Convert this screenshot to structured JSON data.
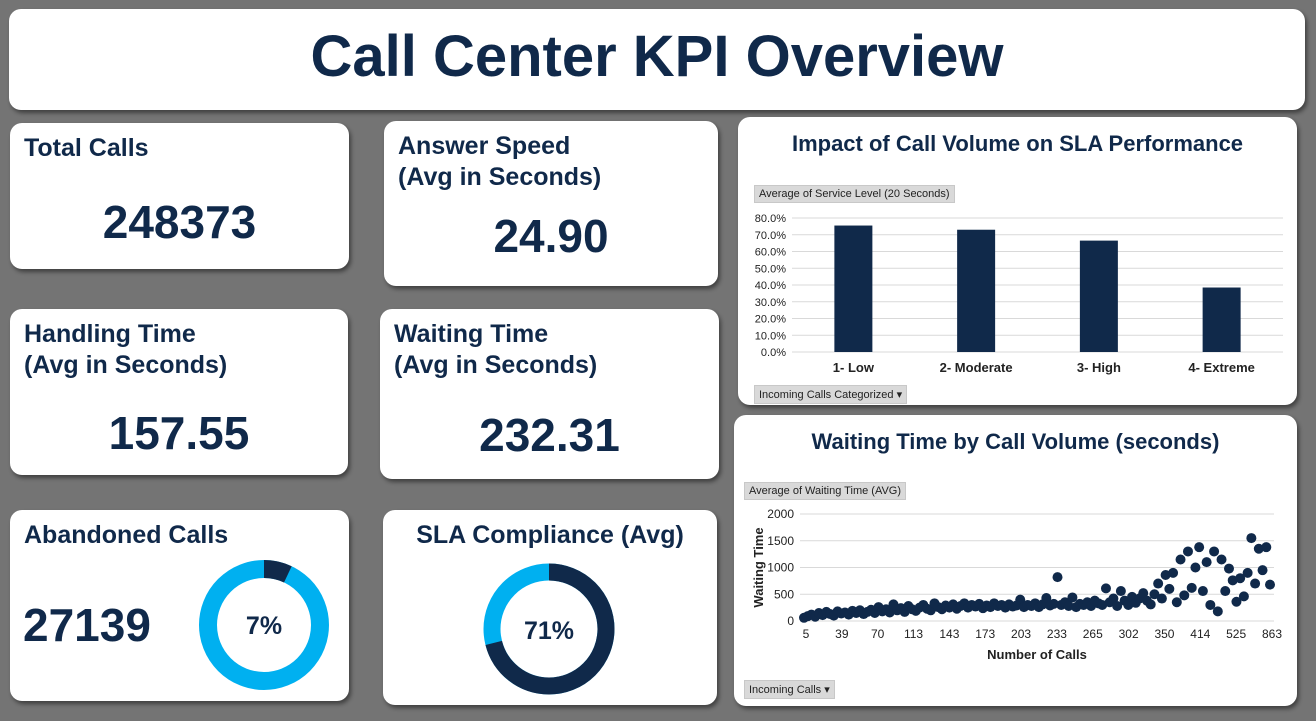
{
  "title": "Call Center KPI Overview",
  "kpis": {
    "total_calls": {
      "label": "Total Calls",
      "value": "248373"
    },
    "answer_speed": {
      "label": "Answer Speed\n(Avg in Seconds)",
      "value": "24.90"
    },
    "handling_time": {
      "label": "Handling Time\n(Avg in Seconds)",
      "value": "157.55"
    },
    "waiting_time": {
      "label": "Waiting Time\n(Avg in Seconds)",
      "value": "232.31"
    },
    "abandoned": {
      "label": "Abandoned Calls",
      "value": "27139",
      "percent_label": "7%",
      "percent": 7
    },
    "sla": {
      "label": "SLA Compliance (Avg)",
      "percent_label": "71%",
      "percent": 71
    }
  },
  "colors": {
    "navy": "#10294a",
    "light_blue": "#00b0f0",
    "background": "#747474"
  },
  "chart_data": [
    {
      "type": "bar",
      "title": "Impact of Call Volume on SLA Performance",
      "value_field_button": "Average of Service Level (20 Seconds)",
      "axis_field_button": "Incoming Calls Categorized",
      "categories": [
        "1- Low",
        "2- Moderate",
        "3- High",
        "4- Extreme"
      ],
      "values": [
        75.5,
        73.0,
        66.5,
        38.5
      ],
      "ylim": [
        0,
        80
      ],
      "yticks": [
        "0.0%",
        "10.0%",
        "20.0%",
        "30.0%",
        "40.0%",
        "50.0%",
        "60.0%",
        "70.0%",
        "80.0%"
      ],
      "grid": true
    },
    {
      "type": "scatter",
      "title": "Waiting Time by Call Volume (seconds)",
      "value_field_button": "Average of Waiting Time  (AVG)",
      "axis_field_button": "Incoming Calls",
      "xlabel": "Number of Calls",
      "ylabel": "Waiting Time",
      "ylim": [
        0,
        2000
      ],
      "yticks": [
        "0",
        "500",
        "1000",
        "1500",
        "2000"
      ],
      "xticks": [
        "5",
        "39",
        "70",
        "113",
        "143",
        "173",
        "203",
        "233",
        "265",
        "302",
        "350",
        "414",
        "525",
        "863"
      ],
      "grid": true,
      "y": [
        60,
        90,
        120,
        80,
        150,
        110,
        170,
        130,
        100,
        180,
        140,
        160,
        120,
        190,
        150,
        200,
        130,
        170,
        210,
        150,
        260,
        180,
        220,
        160,
        310,
        200,
        240,
        170,
        280,
        220,
        190,
        250,
        300,
        230,
        200,
        330,
        260,
        220,
        290,
        250,
        310,
        230,
        280,
        330,
        250,
        300,
        270,
        320,
        240,
        290,
        260,
        330,
        280,
        300,
        250,
        310,
        270,
        290,
        400,
        260,
        300,
        280,
        330,
        260,
        310,
        430,
        290,
        320,
        820,
        300,
        350,
        280,
        440,
        260,
        320,
        300,
        350,
        280,
        380,
        330,
        300,
        610,
        350,
        420,
        280,
        560,
        380,
        300,
        450,
        340,
        420,
        520,
        380,
        310,
        500,
        700,
        420,
        860,
        600,
        900,
        350,
        1150,
        480,
        1300,
        620,
        1000,
        1380,
        560,
        1100,
        300,
        1300,
        180,
        1150,
        560,
        980,
        760,
        360,
        800,
        460,
        900,
        1550,
        700,
        1350,
        950,
        1380,
        680
      ]
    }
  ]
}
